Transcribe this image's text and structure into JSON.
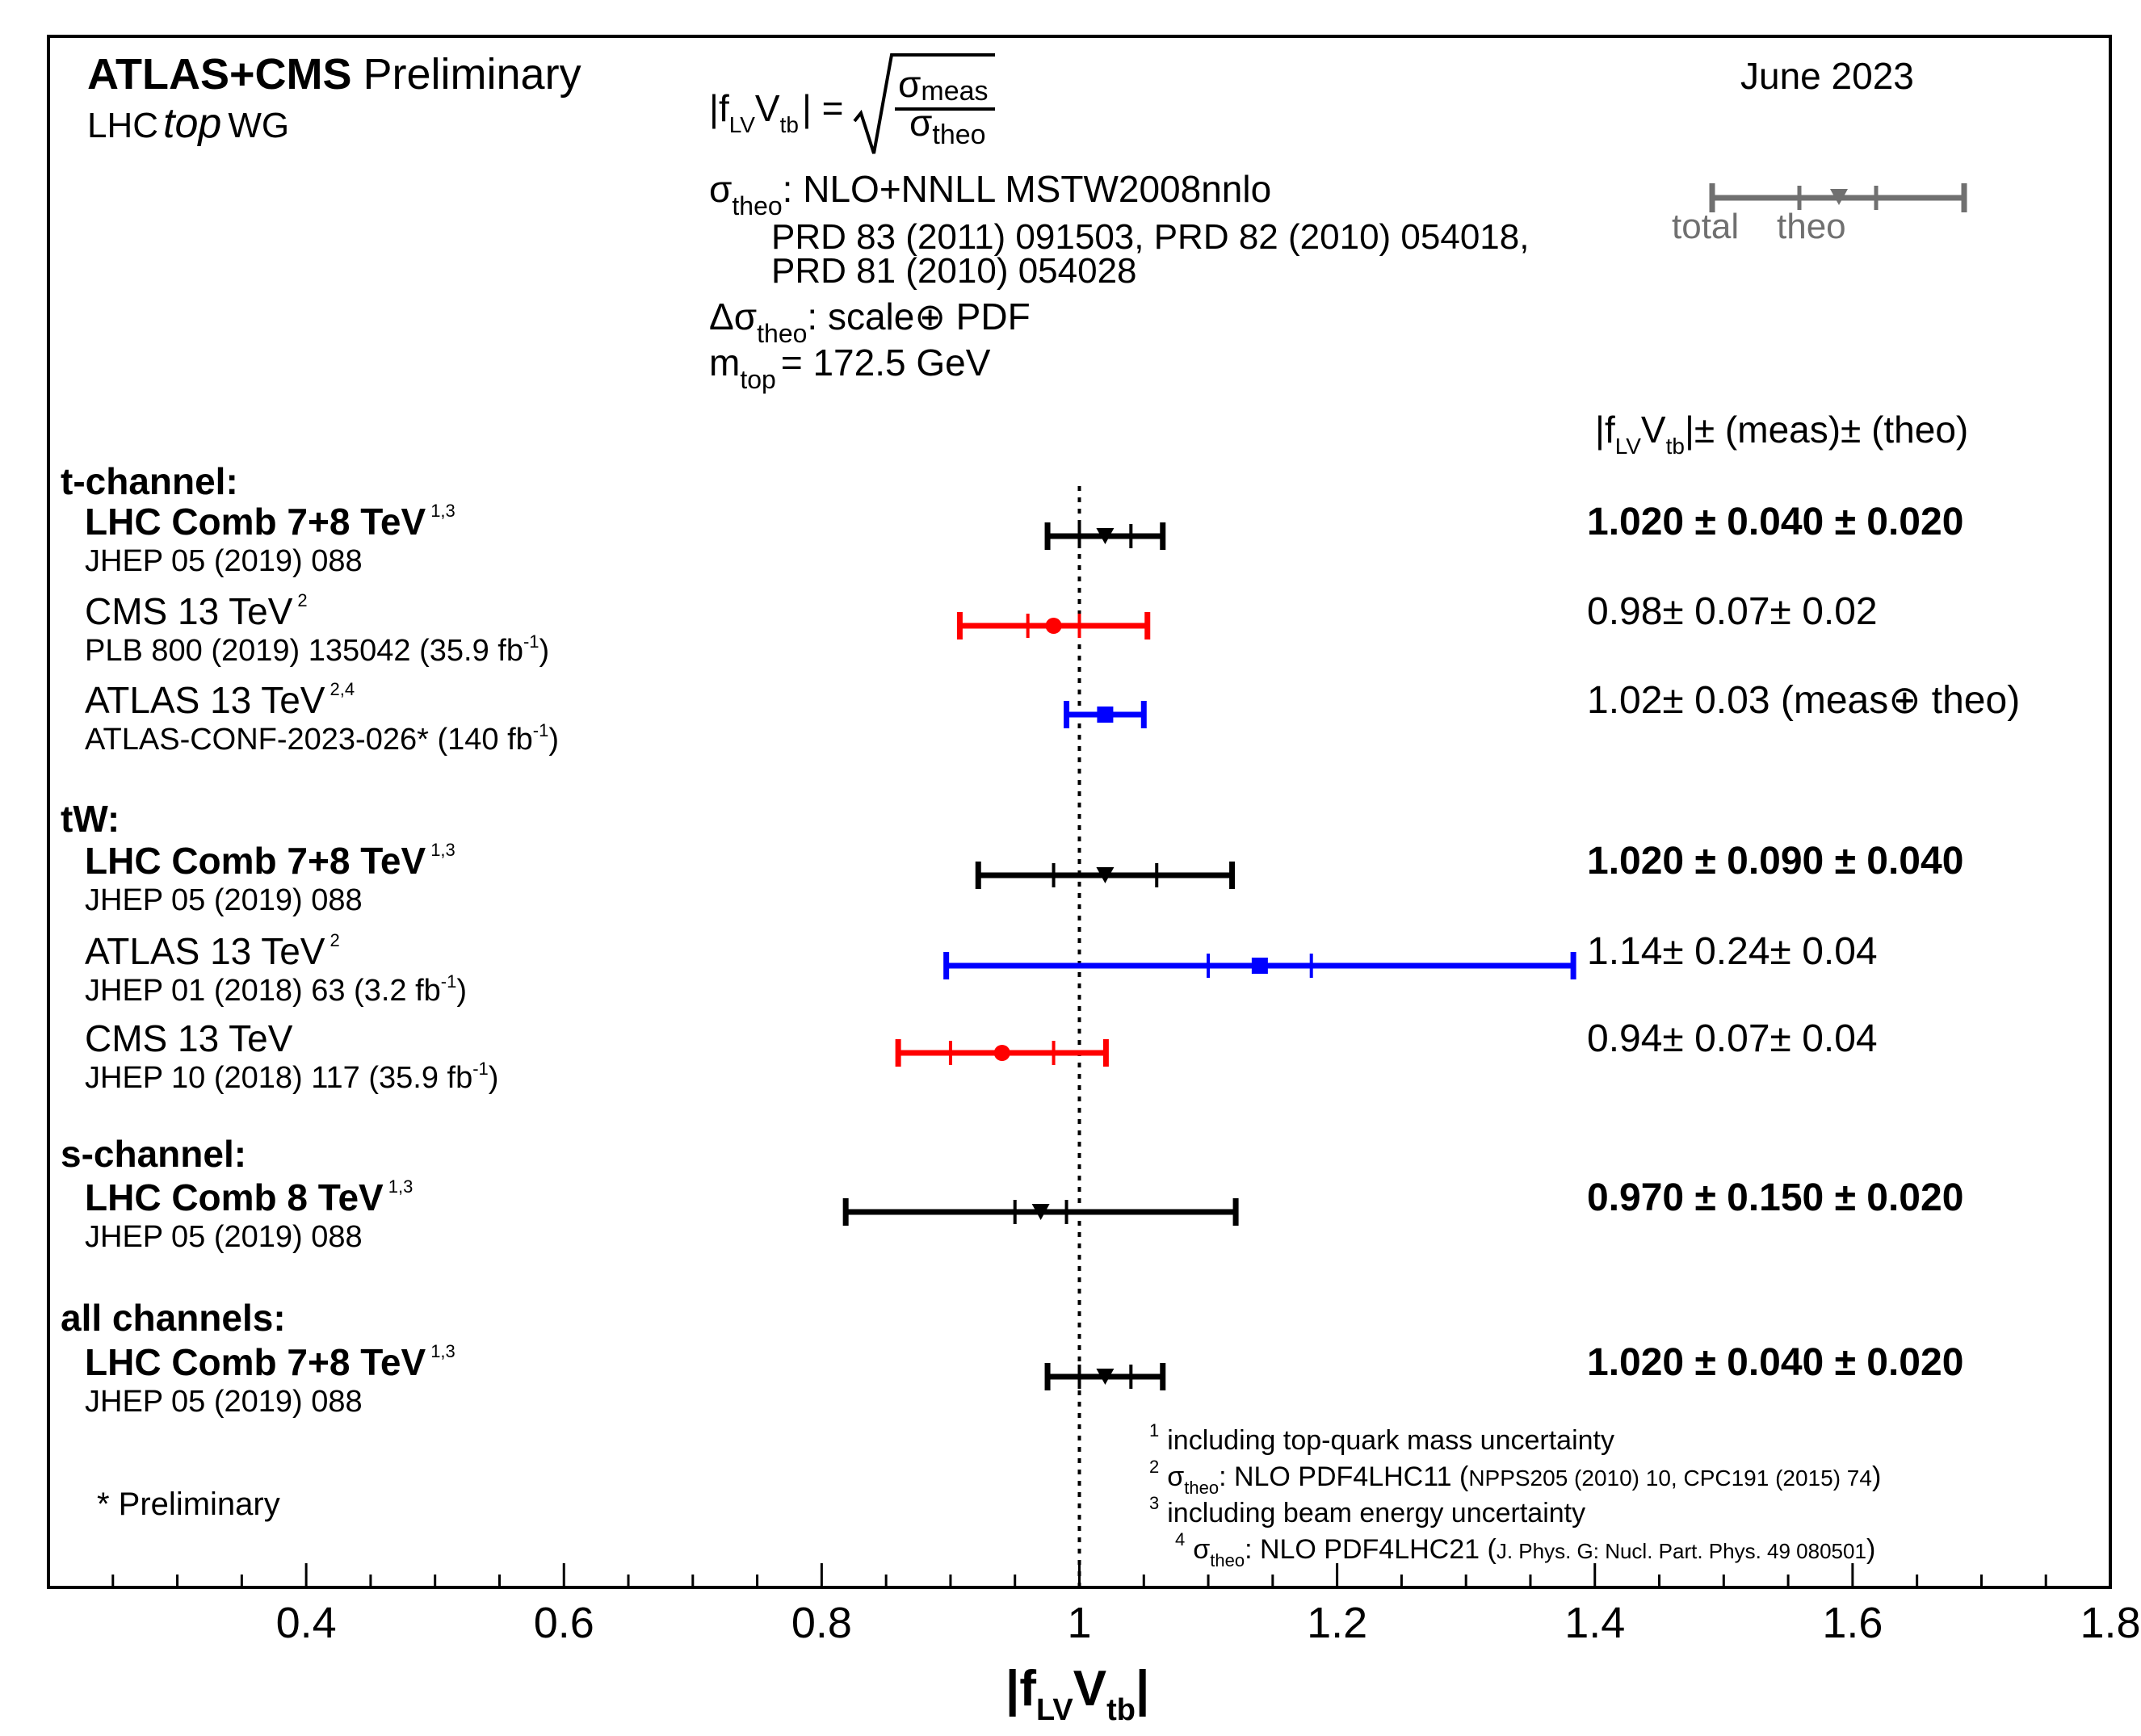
{
  "header": {
    "title_bold": "ATLAS+CMS",
    "title_rest": "Preliminary",
    "wg_pre": "LHC",
    "wg_italic": "top",
    "wg_post": "WG",
    "date": "June 2023"
  },
  "formula": {
    "lhs_f": "|f",
    "lhs_lv": "LV",
    "lhs_v": "V",
    "lhs_tb": "tb",
    "lhs_close": "| =",
    "num_sigma": "σ",
    "num_sub": "meas",
    "den_sigma": "σ",
    "den_sub": "theo",
    "theo_sigma": "σ",
    "theo_sub": "theo",
    "theo_desc": ": NLO+NNLL MSTW2008nnlo",
    "ref_line1": "PRD 83 (2011) 091503, PRD 82 (2010) 054018,",
    "ref_line2": "PRD 81 (2010) 054028",
    "delta_sym": "Δσ",
    "delta_sub": "theo",
    "delta_desc": ": scale⊕ PDF",
    "mtop_m": "m",
    "mtop_sub": "top",
    "mtop_val": "= 172.5 GeV"
  },
  "legend": {
    "total": "total",
    "theo": "theo"
  },
  "columns": {
    "header_f": "|f",
    "header_lv": "LV",
    "header_v": "V",
    "header_tb": "tb",
    "header_rest": "|± (meas)± (theo)"
  },
  "chart_data": {
    "type": "scatter",
    "title": "ATLAS+CMS Preliminary",
    "xlabel": "|fLVVtb|",
    "xlim": [
      0.2,
      1.8
    ],
    "xticks": [
      "0.4",
      "0.6",
      "0.8",
      "1",
      "1.2",
      "1.4",
      "1.6",
      "1.8"
    ],
    "reference_line": 1.0,
    "colors": {
      "black": "#000000",
      "red": "#ff0000",
      "blue": "#0000ff",
      "grey": "#707070"
    },
    "groups": [
      {
        "label": "t-channel:"
      },
      {
        "label": "tW:"
      },
      {
        "label": "s-channel:"
      },
      {
        "label": "all channels:"
      }
    ],
    "measurements": [
      {
        "group": 0,
        "name": "LHC Comb 7+8 TeV",
        "sup": "1,3",
        "ref": "JHEP 05 (2019) 088",
        "lumi": "",
        "bold": true,
        "color": "#000000",
        "marker": "triangle",
        "value": 1.02,
        "meas": 0.04,
        "theo": 0.02,
        "combined": false,
        "result": "1.020 ± 0.040 ± 0.020"
      },
      {
        "group": 0,
        "name": "CMS 13 TeV",
        "sup": "2",
        "ref": "PLB 800 (2019) 135042  (35.9 fb",
        "lumi": "-1",
        "bold": false,
        "color": "#ff0000",
        "marker": "circle",
        "value": 0.98,
        "meas": 0.07,
        "theo": 0.02,
        "combined": false,
        "result": "0.98± 0.07± 0.02"
      },
      {
        "group": 0,
        "name": "ATLAS 13 TeV",
        "sup": "2,4",
        "ref": "ATLAS-CONF-2023-026*  (140 fb",
        "lumi": "-1",
        "bold": false,
        "color": "#0000ff",
        "marker": "square",
        "value": 1.02,
        "meas": 0.03,
        "theo": 0.0,
        "combined": true,
        "result": "1.02± 0.03 (meas⊕ theo)"
      },
      {
        "group": 1,
        "name": "LHC Comb 7+8 TeV",
        "sup": "1,3",
        "ref": "JHEP 05 (2019) 088",
        "lumi": "",
        "bold": true,
        "color": "#000000",
        "marker": "triangle",
        "value": 1.02,
        "meas": 0.09,
        "theo": 0.04,
        "combined": false,
        "result": "1.020 ± 0.090 ± 0.040"
      },
      {
        "group": 1,
        "name": "ATLAS 13 TeV",
        "sup": "2",
        "ref": "JHEP 01 (2018) 63  (3.2 fb",
        "lumi": "-1",
        "bold": false,
        "color": "#0000ff",
        "marker": "square",
        "value": 1.14,
        "meas": 0.24,
        "theo": 0.04,
        "combined": false,
        "result": "1.14± 0.24± 0.04"
      },
      {
        "group": 1,
        "name": "CMS 13 TeV",
        "sup": "",
        "ref": "JHEP 10 (2018) 117  (35.9 fb",
        "lumi": "-1",
        "bold": false,
        "color": "#ff0000",
        "marker": "circle",
        "value": 0.94,
        "meas": 0.07,
        "theo": 0.04,
        "combined": false,
        "result": "0.94± 0.07± 0.04"
      },
      {
        "group": 2,
        "name": "LHC Comb 8 TeV",
        "sup": "1,3",
        "ref": "JHEP 05 (2019) 088",
        "lumi": "",
        "bold": true,
        "color": "#000000",
        "marker": "triangle",
        "value": 0.97,
        "meas": 0.15,
        "theo": 0.02,
        "combined": false,
        "result": "0.970 ± 0.150 ± 0.020"
      },
      {
        "group": 3,
        "name": "LHC Comb 7+8 TeV",
        "sup": "1,3",
        "ref": "JHEP 05 (2019) 088",
        "lumi": "",
        "bold": true,
        "color": "#000000",
        "marker": "triangle",
        "value": 1.02,
        "meas": 0.04,
        "theo": 0.02,
        "combined": false,
        "result": "1.020 ± 0.040 ± 0.020"
      }
    ]
  },
  "footnotes": {
    "n1": "1",
    "t1": "including top-quark mass uncertainty",
    "n2": "2",
    "t2_sigma": "σ",
    "t2_sub": "theo",
    "t2_main": ": NLO PDF4LHC11 (",
    "t2_small": "NPPS205 (2010) 10, CPC191 (2015) 74",
    "t2_close": ")",
    "n3": "3",
    "t3": "including beam energy uncertainty",
    "n4": "4",
    "t4_sigma": "σ",
    "t4_sub": "theo",
    "t4_main": ": NLO PDF4LHC21 (",
    "t4_small": "J. Phys. G: Nucl. Part. Phys. 49 080501",
    "t4_close": ")",
    "preliminary": "* Preliminary"
  },
  "xaxis": {
    "f": "|f",
    "lv": "LV",
    "v": "V",
    "tb": "tb",
    "close": "|"
  }
}
